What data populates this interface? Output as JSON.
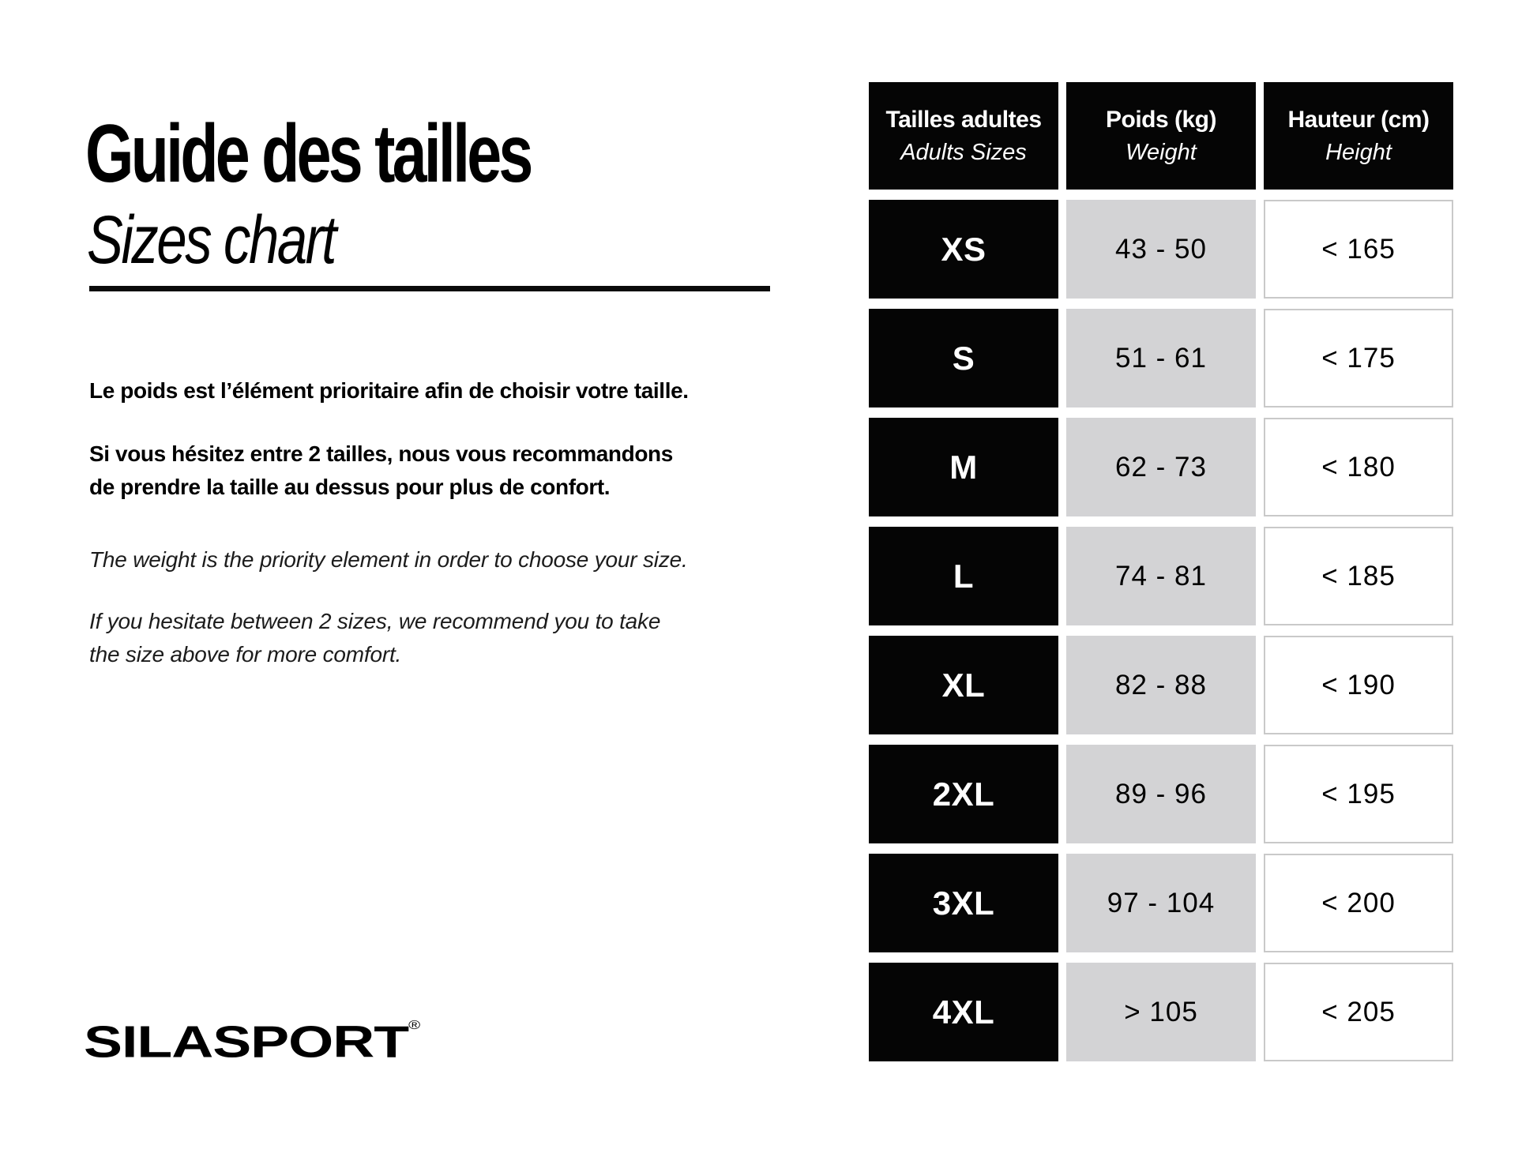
{
  "page": {
    "background": "#ffffff"
  },
  "colors": {
    "ink": "#000000",
    "header_cell_bg": "#050505",
    "weight_cell_bg": "#d3d3d5",
    "height_cell_border": "#c9c9c9",
    "header_text": "#ffffff"
  },
  "header": {
    "title_fr": "Guide des tailles",
    "title_en": "Sizes chart"
  },
  "intro": {
    "fr_line1": "Le poids est l’élément prioritaire afin de choisir votre taille.",
    "fr_line2a": "Si vous hésitez entre 2 tailles, nous vous recommandons",
    "fr_line2b": "de prendre la taille au dessus pour plus de confort.",
    "en_line1": "The weight is the priority element in order to choose your size.",
    "en_line2a": "If you hesitate between 2 sizes, we recommend you to take",
    "en_line2b": "the size above for more comfort."
  },
  "logo": {
    "brand": "SILASPORT",
    "registered": "®"
  },
  "table": {
    "headers": [
      {
        "fr": "Tailles adultes",
        "en": "Adults Sizes"
      },
      {
        "fr": "Poids (kg)",
        "en": "Weight"
      },
      {
        "fr": "Hauteur (cm)",
        "en": "Height"
      }
    ],
    "rows": [
      {
        "size": "XS",
        "weight": "43 - 50",
        "height": "< 165"
      },
      {
        "size": "S",
        "weight": "51 - 61",
        "height": "< 175"
      },
      {
        "size": "M",
        "weight": "62 - 73",
        "height": "< 180"
      },
      {
        "size": "L",
        "weight": "74 - 81",
        "height": "< 185"
      },
      {
        "size": "XL",
        "weight": "82 - 88",
        "height": "< 190"
      },
      {
        "size": "2XL",
        "weight": "89 - 96",
        "height": "< 195"
      },
      {
        "size": "3XL",
        "weight": "97 - 104",
        "height": "< 200"
      },
      {
        "size": "4XL",
        "weight": "> 105",
        "height": "< 205"
      }
    ]
  }
}
